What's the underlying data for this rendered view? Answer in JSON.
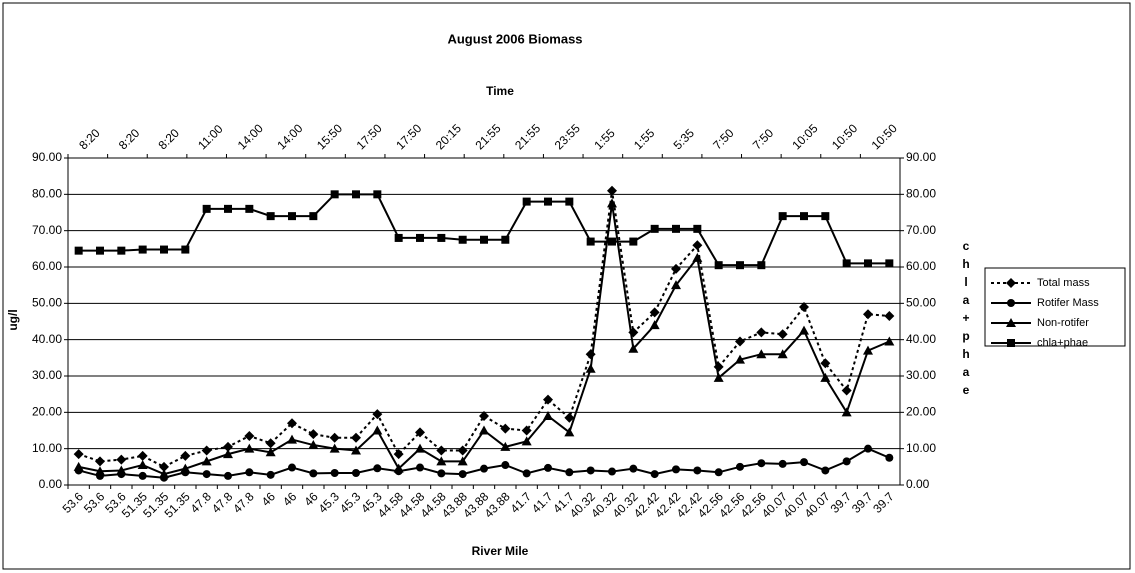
{
  "chart_data": {
    "type": "line",
    "title": "August 2006 Biomass",
    "x_label": "River Mile",
    "x2_label": "Time",
    "y_label": "ug/l",
    "y2_label": "chla+phae",
    "categories": [
      "53.6",
      "53.6",
      "53.6",
      "51.35",
      "51.35",
      "51.35",
      "47.8",
      "47.8",
      "47.8",
      "46",
      "46",
      "46",
      "45.3",
      "45.3",
      "45.3",
      "44.58",
      "44.58",
      "44.58",
      "43.88",
      "43.88",
      "43.88",
      "41.7",
      "41.7",
      "41.7",
      "40.32",
      "40.32",
      "40.32",
      "42.42",
      "42.42",
      "42.42",
      "42.56",
      "42.56",
      "42.56",
      "40.07",
      "40.07",
      "40.07",
      "39.7",
      "39.7",
      "39.7"
    ],
    "x2_categories": [
      "8:20",
      "8:20",
      "8:20",
      "11:00",
      "14:00",
      "14:00",
      "15:50",
      "17:50",
      "17:50",
      "20:15",
      "21:55",
      "21:55",
      "23:55",
      "1:55",
      "1:55",
      "5:35",
      "7:50",
      "7:50",
      "10:05",
      "10:50",
      "10:50"
    ],
    "ylim": [
      0,
      90
    ],
    "yticks": [
      {
        "value": 0,
        "label": "0.00"
      },
      {
        "value": 10,
        "label": "10.00"
      },
      {
        "value": 20,
        "label": "20.00"
      },
      {
        "value": 30,
        "label": "30.00"
      },
      {
        "value": 40,
        "label": "40.00"
      },
      {
        "value": 50,
        "label": "50.00"
      },
      {
        "value": 60,
        "label": "60.00"
      },
      {
        "value": 70,
        "label": "70.00"
      },
      {
        "value": 80,
        "label": "80.00"
      },
      {
        "value": 90,
        "label": "90.00"
      }
    ],
    "y2lim": [
      0,
      90
    ],
    "y2ticks": [
      {
        "value": 0,
        "label": "0.00"
      },
      {
        "value": 10,
        "label": "10.00"
      },
      {
        "value": 20,
        "label": "20.00"
      },
      {
        "value": 30,
        "label": "30.00"
      },
      {
        "value": 40,
        "label": "40.00"
      },
      {
        "value": 50,
        "label": "50.00"
      },
      {
        "value": 60,
        "label": "60.00"
      },
      {
        "value": 70,
        "label": "70.00"
      },
      {
        "value": 80,
        "label": "80.00"
      },
      {
        "value": 90,
        "label": "90.00"
      }
    ],
    "grid": true,
    "legend": "right",
    "series": [
      {
        "name": "Total mass",
        "color": "#000000",
        "marker": "diamond",
        "dash": true,
        "values": [
          8.5,
          6.5,
          7,
          8,
          5,
          8,
          9.5,
          10.5,
          13.5,
          11.5,
          17,
          14,
          13,
          13,
          19.5,
          8.5,
          14.5,
          9.5,
          9.5,
          19,
          15.5,
          15,
          23.5,
          18.5,
          36,
          81,
          42,
          47.5,
          59.5,
          66,
          32.5,
          39.5,
          42,
          41.5,
          49,
          33.5,
          26,
          47,
          46.5
        ]
      },
      {
        "name": "Rotifer Mass",
        "color": "#000000",
        "marker": "circle",
        "dash": false,
        "values": [
          4,
          2.5,
          3,
          2.5,
          2,
          3.5,
          3,
          2.5,
          3.5,
          2.8,
          4.8,
          3.2,
          3.3,
          3.3,
          4.6,
          3.8,
          4.8,
          3.2,
          3,
          4.5,
          5.5,
          3.2,
          4.7,
          3.5,
          4,
          3.7,
          4.5,
          3,
          4.3,
          4,
          3.5,
          5,
          6,
          5.8,
          6.3,
          4,
          6.5,
          10,
          7.5
        ]
      },
      {
        "name": "Non-rotifer",
        "color": "#000000",
        "marker": "triangle",
        "dash": false,
        "values": [
          5,
          3.8,
          4,
          5.5,
          3,
          4.5,
          6.5,
          8.5,
          10,
          9,
          12.5,
          11,
          10,
          9.5,
          15,
          4.5,
          10,
          6.5,
          6.5,
          15,
          10.5,
          12,
          19,
          14.5,
          32,
          77.5,
          37.5,
          44,
          55,
          62.5,
          29.5,
          34.5,
          36,
          36,
          42.5,
          29.5,
          20,
          37,
          39.5
        ]
      },
      {
        "name": "chla+phae",
        "color": "#000000",
        "marker": "square",
        "dash": false,
        "axis": "y2",
        "values": [
          64.5,
          64.5,
          64.5,
          64.8,
          64.8,
          64.8,
          76,
          76,
          76,
          74,
          74,
          74,
          80,
          80,
          80,
          68,
          68,
          68,
          67.5,
          67.5,
          67.5,
          78,
          78,
          78,
          67,
          67,
          67,
          70.5,
          70.5,
          70.5,
          60.5,
          60.5,
          60.5,
          74,
          74,
          74,
          61,
          61,
          61
        ]
      }
    ]
  }
}
